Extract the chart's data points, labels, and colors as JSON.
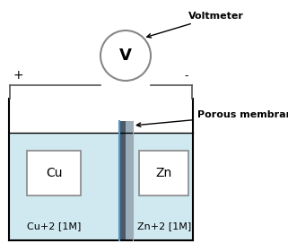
{
  "bg_color": "#ffffff",
  "water_color": "#d0e8f0",
  "membrane_color_dark": "#4a5a6a",
  "membrane_color_light": "#9aacb8",
  "membrane_border_color": "#5599cc",
  "electrode_box_color": "#ffffff",
  "electrode_box_edge": "#888888",
  "line_color": "#000000",
  "wire_color": "#555555",
  "voltmeter_edge": "#888888",
  "voltmeter_label": "V",
  "voltmeter_annotation": "Voltmeter",
  "membrane_annotation": "Porous membrane",
  "cu_label": "Cu",
  "zn_label": "Zn",
  "cu_solution": "Cu+2 [1M]",
  "zn_solution": "Zn+2 [1M]",
  "plus_label": "+",
  "minus_label": "-"
}
